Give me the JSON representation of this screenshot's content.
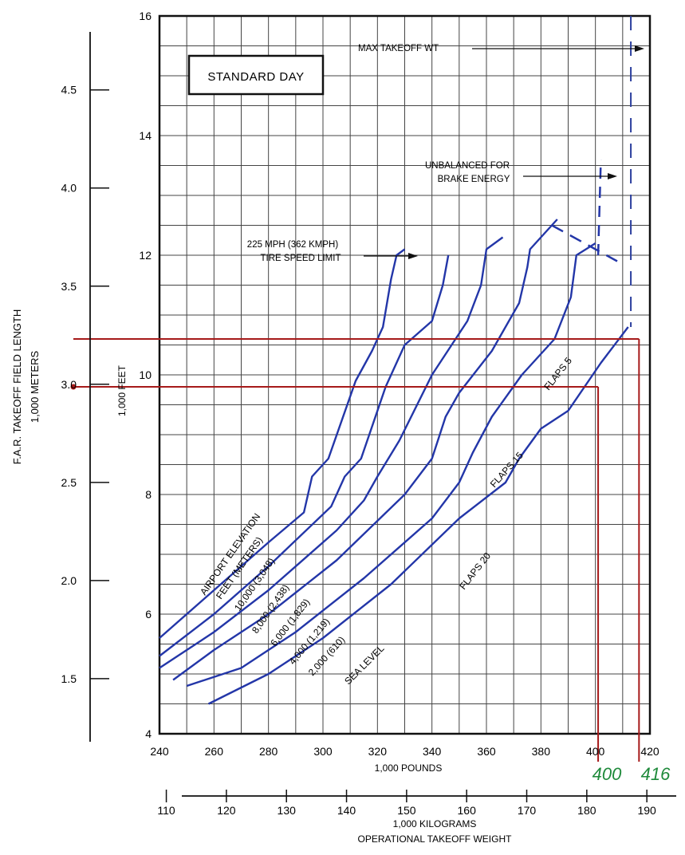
{
  "chart_data": {
    "type": "line",
    "standard_day_label": "STANDARD DAY",
    "x_axis": {
      "label": "1,000 POUNDS",
      "range": [
        240,
        420
      ],
      "ticks": [
        "240",
        "260",
        "280",
        "300",
        "320",
        "340",
        "360",
        "380",
        "400",
        "420"
      ]
    },
    "x_axis_kg": {
      "label_line1": "1,000 KILOGRAMS",
      "label_line2": "OPERATIONAL TAKEOFF WEIGHT",
      "ticks": [
        "110",
        "120",
        "130",
        "140",
        "150",
        "160",
        "170",
        "180",
        "190"
      ]
    },
    "y_axis_feet": {
      "label": "1,000 FEET",
      "range": [
        4,
        16
      ],
      "ticks": [
        "4",
        "6",
        "8",
        "10",
        "12",
        "14",
        "16"
      ]
    },
    "y_axis_meters": {
      "label_line1": "F.A.R. TAKEOFF FIELD LENGTH",
      "label_line2": "1,000 METERS",
      "ticks": [
        "1.5",
        "2.0",
        "2.5",
        "3.0",
        "3.5",
        "4.0",
        "4.5"
      ]
    },
    "legend_title": [
      "AIRPORT ELEVATION",
      "FEET (METERS)"
    ],
    "series": [
      {
        "name": "10,000 (3,048)",
        "points": [
          [
            240,
            5.6
          ],
          [
            260,
            6.4
          ],
          [
            280,
            7.2
          ],
          [
            293,
            7.7
          ],
          [
            296,
            8.3
          ],
          [
            302,
            8.6
          ],
          [
            312,
            9.9
          ],
          [
            318,
            10.4
          ],
          [
            322,
            10.8
          ],
          [
            325,
            11.6
          ],
          [
            327,
            12.0
          ],
          [
            330,
            12.1
          ]
        ]
      },
      {
        "name": "8,000 (2,438)",
        "points": [
          [
            240,
            5.3
          ],
          [
            260,
            6.0
          ],
          [
            280,
            6.8
          ],
          [
            303,
            7.8
          ],
          [
            308,
            8.3
          ],
          [
            314,
            8.6
          ],
          [
            323,
            9.8
          ],
          [
            330,
            10.5
          ],
          [
            340,
            10.9
          ],
          [
            344,
            11.5
          ],
          [
            346,
            12.0
          ]
        ]
      },
      {
        "name": "6,000 (1,829)",
        "points": [
          [
            240,
            5.1
          ],
          [
            260,
            5.7
          ],
          [
            280,
            6.4
          ],
          [
            305,
            7.4
          ],
          [
            315,
            7.9
          ],
          [
            320,
            8.3
          ],
          [
            328,
            8.9
          ],
          [
            340,
            10.0
          ],
          [
            353,
            10.9
          ],
          [
            358,
            11.5
          ],
          [
            360,
            12.1
          ],
          [
            366,
            12.3
          ]
        ]
      },
      {
        "name": "4,000 (1,219)",
        "points": [
          [
            245,
            4.9
          ],
          [
            260,
            5.4
          ],
          [
            280,
            6.0
          ],
          [
            305,
            6.9
          ],
          [
            330,
            8.0
          ],
          [
            340,
            8.6
          ],
          [
            345,
            9.3
          ],
          [
            350,
            9.7
          ],
          [
            362,
            10.4
          ],
          [
            372,
            11.2
          ],
          [
            375,
            11.8
          ],
          [
            376,
            12.1
          ],
          [
            386,
            12.6
          ]
        ]
      },
      {
        "name": "2,000 (610)",
        "points": [
          [
            250,
            4.8
          ],
          [
            270,
            5.1
          ],
          [
            290,
            5.7
          ],
          [
            315,
            6.6
          ],
          [
            340,
            7.6
          ],
          [
            350,
            8.2
          ],
          [
            355,
            8.7
          ],
          [
            362,
            9.3
          ],
          [
            373,
            10.0
          ],
          [
            385,
            10.6
          ],
          [
            391,
            11.3
          ],
          [
            393,
            12.0
          ],
          [
            400,
            12.2
          ]
        ]
      },
      {
        "name": "SEA LEVEL",
        "points": [
          [
            258,
            4.5
          ],
          [
            280,
            5.0
          ],
          [
            300,
            5.6
          ],
          [
            325,
            6.5
          ],
          [
            350,
            7.6
          ],
          [
            367,
            8.2
          ],
          [
            372,
            8.6
          ],
          [
            380,
            9.1
          ],
          [
            390,
            9.4
          ],
          [
            396,
            9.8
          ],
          [
            402,
            10.2
          ],
          [
            412,
            10.8
          ]
        ]
      }
    ],
    "flap_labels": [
      "FLAPS 5",
      "FLAPS 15",
      "FLAPS 20"
    ],
    "annotations": {
      "max_takeoff_wt": "MAX TAKEOFF WT",
      "max_takeoff_wt_x": 413,
      "brake_energy_line1": "UNBALANCED FOR",
      "brake_energy_line2": "BRAKE ENERGY",
      "tire_speed_line1": "225 MPH (362 KMPH)",
      "tire_speed_line2": "TIRE SPEED LIMIT"
    },
    "handwritten": {
      "value_a": "400",
      "value_b": "416",
      "line_a": {
        "weight": 401,
        "field_length": 9.8
      },
      "line_b": {
        "weight": 416,
        "field_length": 10.6
      }
    },
    "colors": {
      "curve": "#2336a8",
      "grid": "#444444",
      "marker": "#a61a1a",
      "handwriting": "#1f8a3b"
    }
  }
}
